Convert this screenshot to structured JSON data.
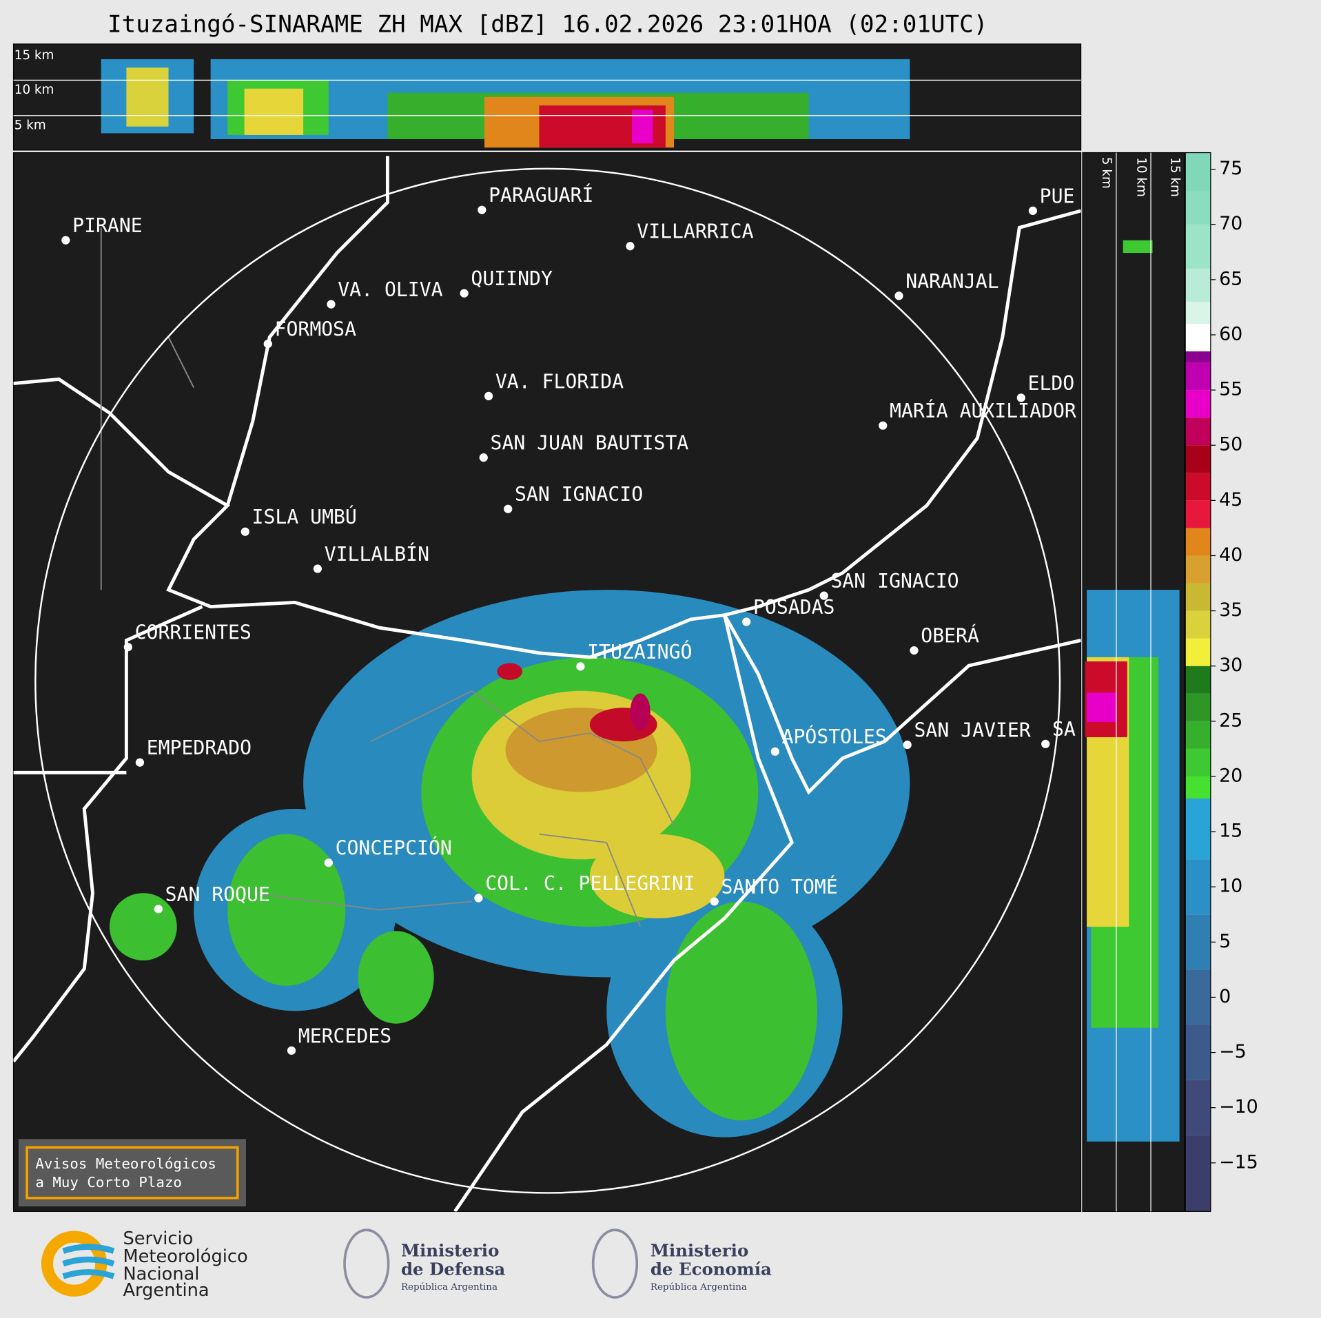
{
  "header": {
    "title": "Ituzaingó-SINARAME ZH MAX [dBZ] 16.02.2026 23:01HOA (02:01UTC)"
  },
  "cross_sections": {
    "top_labels": [
      "15 km",
      "10 km",
      "5 km"
    ],
    "right_labels": [
      "5 km",
      "10 km",
      "15 km"
    ]
  },
  "map": {
    "places": [
      "PIRANE",
      "PARAGUARÍ",
      "VILLARRICA",
      "VA. OLIVA",
      "QUIINDY",
      "FORMOSA",
      "NARANJAL",
      "VA. FLORIDA",
      "ELDO",
      "MARÍA AUXILIADOR",
      "SAN JUAN BAUTISTA",
      "SAN IGNACIO",
      "ISLA UMBÚ",
      "VILLALBÍN",
      "SAN IGNACIO",
      "POSADAS",
      "CORRIENTES",
      "ITUZAINGÓ",
      "OBERÁ",
      "APÓSTOLES",
      "SAN JAVIER",
      "SA",
      "EMPEDRADO",
      "CONCEPCIÓN",
      "SAN ROQUE",
      "COL. C. PELLEGRINI",
      "SANTO TOMÉ",
      "MERCEDES",
      "PUE"
    ]
  },
  "colorbar": {
    "lim": [
      -19.4,
      76.5
    ],
    "ticks": [
      {
        "value": -15,
        "label": "−15"
      },
      {
        "value": -10,
        "label": "−10"
      },
      {
        "value": -5,
        "label": "−5"
      },
      0,
      5,
      10,
      15,
      20,
      25,
      30,
      35,
      40,
      45,
      50,
      55,
      60,
      65,
      70,
      75
    ],
    "stops": [
      {
        "value": -19.4,
        "color": "#3b3d6b"
      },
      {
        "value": -12.5,
        "color": "#3f4a7a"
      },
      {
        "value": -7.5,
        "color": "#3c5a8c"
      },
      {
        "value": -2.5,
        "color": "#3a6a9c"
      },
      {
        "value": 2.5,
        "color": "#2f7fb3"
      },
      {
        "value": 7.5,
        "color": "#2a90c6"
      },
      {
        "value": 12.5,
        "color": "#2aa3d6"
      },
      {
        "value": 18,
        "color": "#46e030"
      },
      {
        "value": 20,
        "color": "#3ec832"
      },
      {
        "value": 22.5,
        "color": "#36b02c"
      },
      {
        "value": 25,
        "color": "#2e9626"
      },
      {
        "value": 27.5,
        "color": "#1f7a1c"
      },
      {
        "value": 30,
        "color": "#f2ef3a"
      },
      {
        "value": 32.5,
        "color": "#d9d23a"
      },
      {
        "value": 35,
        "color": "#c8b832"
      },
      {
        "value": 37.5,
        "color": "#d8a030"
      },
      {
        "value": 40,
        "color": "#e0861a"
      },
      {
        "value": 42.5,
        "color": "#e8183c"
      },
      {
        "value": 45,
        "color": "#cc0a2a"
      },
      {
        "value": 47.5,
        "color": "#a80018"
      },
      {
        "value": 50,
        "color": "#c0005a"
      },
      {
        "value": 52.5,
        "color": "#e800c8"
      },
      {
        "value": 55,
        "color": "#c000b0"
      },
      {
        "value": 57.5,
        "color": "#8c0090"
      },
      {
        "value": 58.5,
        "color": "#ffffff"
      },
      {
        "value": 61,
        "color": "#d8f5e8"
      },
      {
        "value": 63,
        "color": "#b8ecd8"
      },
      {
        "value": 66,
        "color": "#9ce4c8"
      },
      {
        "value": 70,
        "color": "#8cdcc0"
      },
      {
        "value": 73,
        "color": "#80d8b8"
      }
    ]
  },
  "notice": {
    "lines": [
      "Avisos Meteorológicos",
      "a Muy Corto Plazo"
    ]
  },
  "logos": {
    "smn": [
      "Servicio",
      "Meteorológico",
      "Nacional",
      "Argentina"
    ],
    "defensa": [
      "Ministerio",
      "de Defensa",
      "República Argentina"
    ],
    "economia": [
      "Ministerio",
      "de Economía",
      "República Argentina"
    ]
  }
}
